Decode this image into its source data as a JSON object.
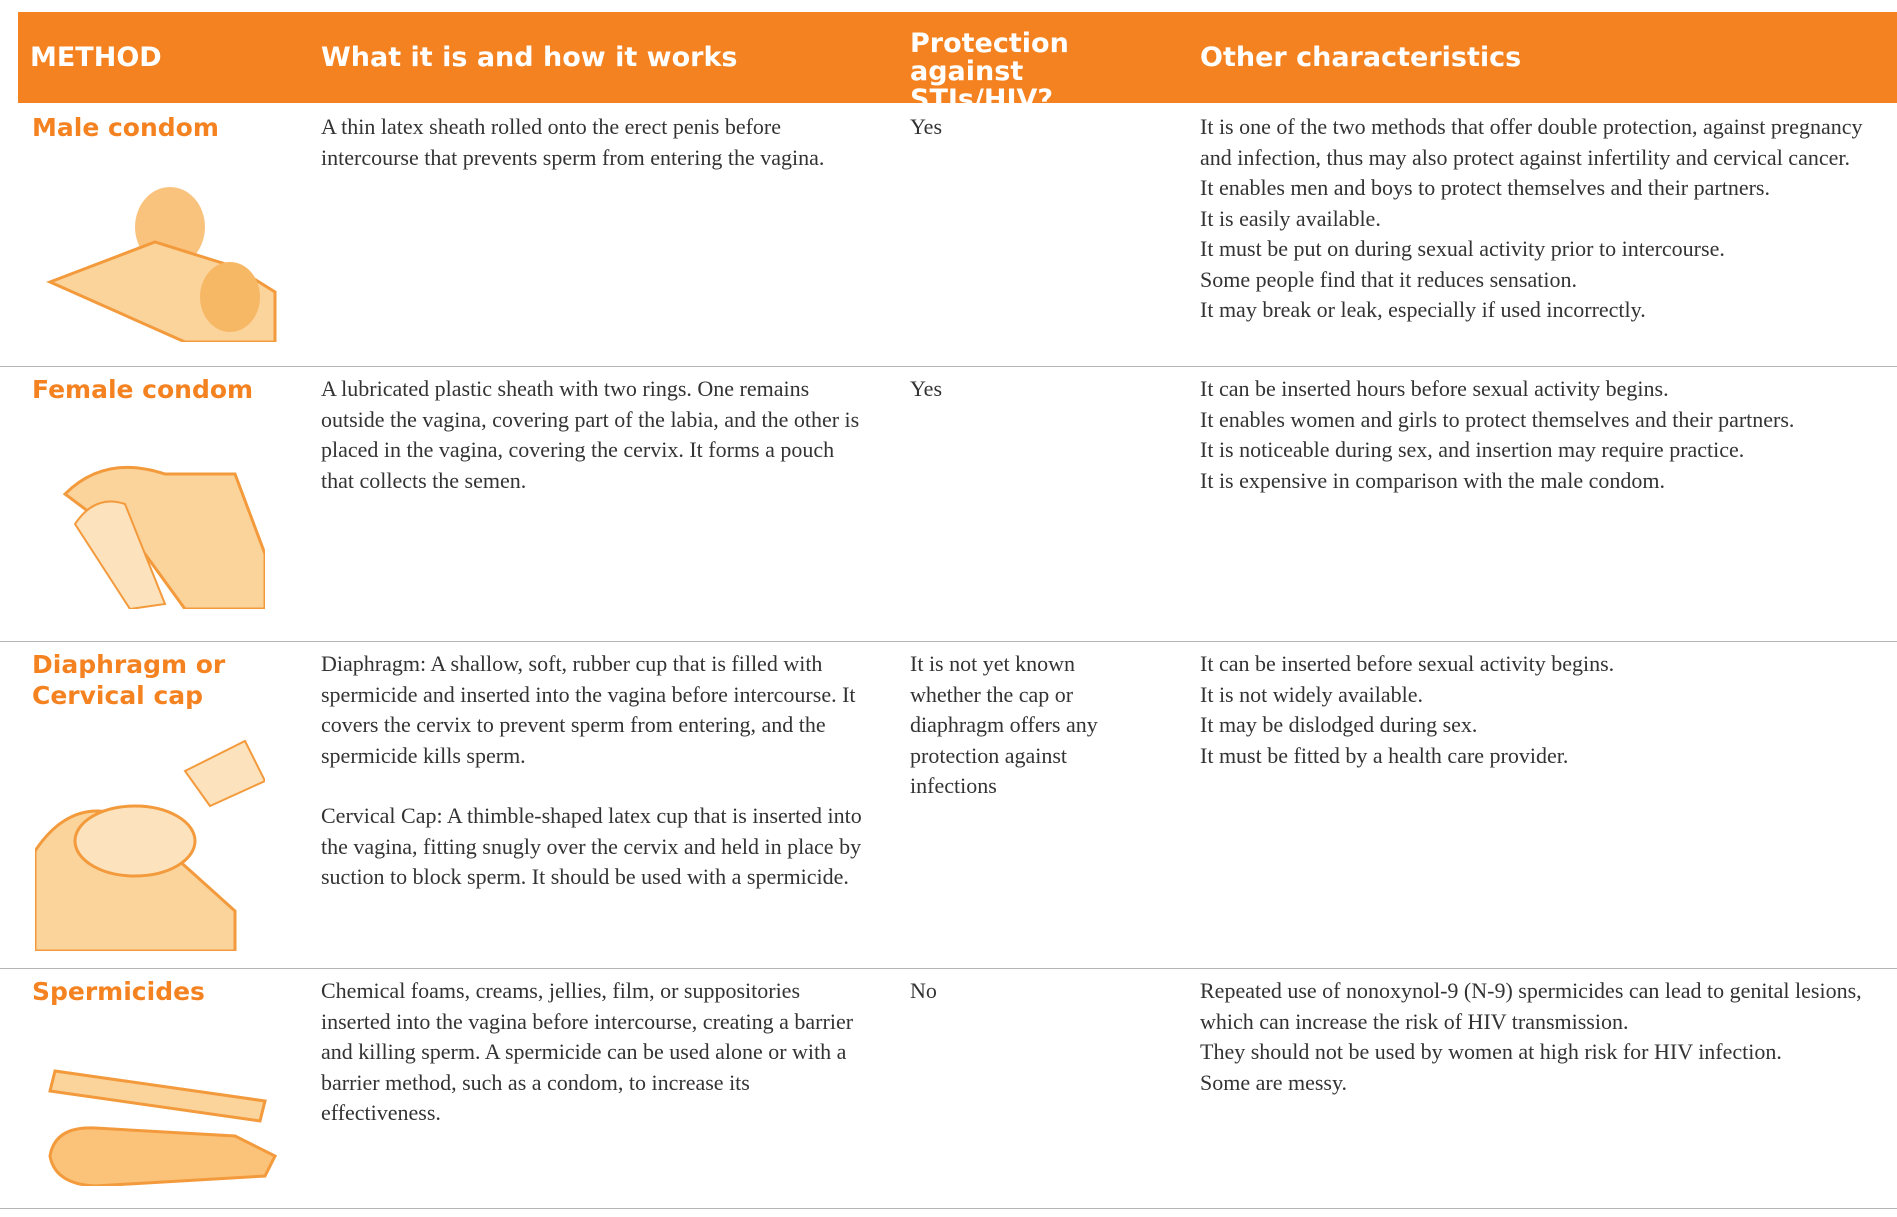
{
  "header": {
    "method": "METHOD",
    "description": "What it is and how it works",
    "protection": "Protection against STIs/HIV?",
    "other": "Other characteristics"
  },
  "rows": [
    {
      "method": "Male condom",
      "description": [
        "A thin latex sheath rolled onto the erect penis before intercourse that prevents sperm from entering the vagina."
      ],
      "protection": "Yes",
      "other": [
        "It is one of the two methods that offer double protection, against pregnancy and infection, thus may also protect against infertility and cervical cancer.",
        "It enables men and boys to protect themselves and their partners.",
        "It is easily available.",
        "It must be put on during sexual activity prior to intercourse.",
        "Some people find that it reduces sensation.",
        "It may break or leak, especially if used incorrectly."
      ]
    },
    {
      "method": "Female condom",
      "description": [
        "A lubricated plastic sheath with two rings. One remains outside the vagina, covering part of the labia, and the other is placed in the vagina, covering the cervix. It forms a pouch that collects the semen."
      ],
      "protection": "Yes",
      "other": [
        "It can be inserted hours before sexual activity begins.",
        "It enables women and girls to protect themselves and their partners.",
        "It is noticeable during sex, and insertion may require practice.",
        "It is expensive in comparison with the male condom."
      ]
    },
    {
      "method": "Diaphragm or Cervical cap",
      "description": [
        "Diaphragm: A shallow, soft, rubber cup that is filled with spermicide and inserted into the vagina before intercourse. It covers the cervix to prevent sperm from entering, and the spermicide kills sperm.",
        "Cervical Cap: A thimble-shaped latex cup that is inserted into the vagina, fitting snugly over the cervix and held in place by suction to block sperm. It should be used with a spermicide."
      ],
      "protection": "It is not yet known whether the cap or diaphragm offers any protection against infections",
      "other": [
        "It can be inserted before sexual activity begins.",
        "It is not widely available.",
        "It may be dislodged during sex.",
        "It must be fitted by a health care provider."
      ]
    },
    {
      "method": "Spermicides",
      "description": [
        "Chemical foams, creams, jellies, film, or suppositories inserted into the vagina before intercourse, creating a barrier and killing sperm. A spermicide can be used alone or with a barrier method, such as a condom, to increase its effectiveness."
      ],
      "protection": "No",
      "other": [
        "Repeated use of nonoxynol-9 (N-9) spermicides can lead to genital lesions, which can increase the risk of HIV transmission.",
        "They should not be used by women at high risk for HIV infection.",
        "Some are messy."
      ]
    }
  ]
}
